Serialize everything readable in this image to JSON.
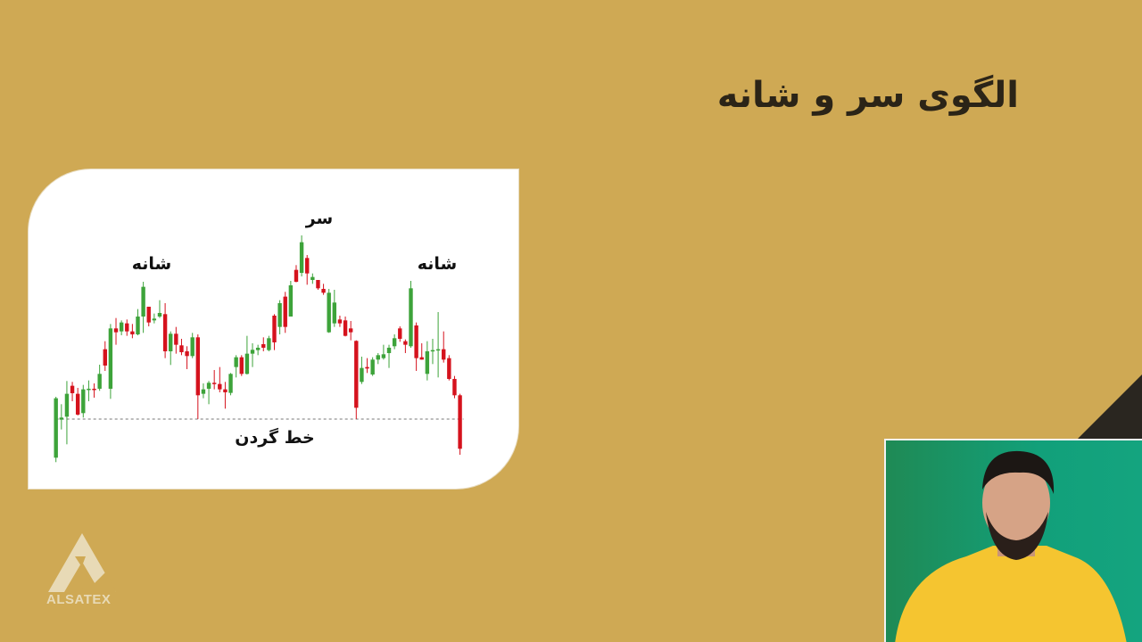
{
  "slide": {
    "title": "الگوی سر و شانه",
    "background_color": "#CFA954"
  },
  "chart_data": {
    "type": "candlestick",
    "title": "",
    "annotations": {
      "left_shoulder": "شانه",
      "head": "سر",
      "right_shoulder": "شانه",
      "neckline": "خط گردن"
    },
    "neckline_level": 16,
    "ylim": [
      0,
      100
    ],
    "colors": {
      "up": "#3DA33A",
      "down": "#D5121D",
      "neckline": "#777777"
    },
    "candles_ohlc": [
      [
        3,
        23.5,
        1.5,
        23
      ],
      [
        15.8,
        21,
        12.5,
        16.5
      ],
      [
        16.8,
        28.8,
        7.5,
        24.5
      ],
      [
        27.2,
        28.5,
        22,
        24.7
      ],
      [
        24.5,
        26.5,
        17.2,
        17.5
      ],
      [
        18,
        27.5,
        16.5,
        26
      ],
      [
        25.8,
        29,
        22,
        26.2
      ],
      [
        26.2,
        28,
        23.2,
        25.8
      ],
      [
        26.2,
        34.3,
        25.5,
        31.2
      ],
      [
        39.5,
        42.2,
        32.2,
        34
      ],
      [
        26.2,
        48,
        22.8,
        46.5
      ],
      [
        46.5,
        50,
        41,
        45.2
      ],
      [
        45.5,
        49.2,
        44.2,
        48.5
      ],
      [
        48.2,
        49.5,
        44,
        45.5
      ],
      [
        45.5,
        48,
        43.2,
        44.5
      ],
      [
        44.5,
        53,
        44.2,
        50.5
      ],
      [
        50.5,
        62.2,
        45,
        60.5
      ],
      [
        53.8,
        53.8,
        47.2,
        48.5
      ],
      [
        49.2,
        51.5,
        48.2,
        49.8
      ],
      [
        50.5,
        56,
        50,
        51.7
      ],
      [
        51.3,
        55,
        36.5,
        38.8
      ],
      [
        38.8,
        45.5,
        34.2,
        44.7
      ],
      [
        44.7,
        47,
        38,
        41
      ],
      [
        40.8,
        43,
        37.5,
        38.5
      ],
      [
        38.8,
        40.5,
        32.8,
        37.2
      ],
      [
        37.2,
        45,
        36.5,
        43.5
      ],
      [
        43.5,
        44.5,
        16,
        24
      ],
      [
        24.5,
        28,
        23,
        26
      ],
      [
        26.2,
        28.8,
        21,
        28.2
      ],
      [
        28.2,
        32.5,
        26,
        27.8
      ],
      [
        27.8,
        33.5,
        25,
        26
      ],
      [
        26,
        28.5,
        19.5,
        25
      ],
      [
        24.8,
        31.5,
        24,
        31.2
      ],
      [
        33.5,
        37.5,
        30,
        36.8
      ],
      [
        36.8,
        37.5,
        30.5,
        31.2
      ],
      [
        31.2,
        44,
        31,
        38
      ],
      [
        38,
        41.5,
        33.5,
        39.3
      ],
      [
        39.2,
        41,
        37.5,
        40
      ],
      [
        41.2,
        43.5,
        38.8,
        40
      ],
      [
        39.2,
        44,
        38.8,
        43.2
      ],
      [
        50.8,
        51.3,
        39.2,
        41.8
      ],
      [
        47,
        56,
        44.5,
        55
      ],
      [
        57.2,
        58.8,
        45,
        47
      ],
      [
        50.5,
        62.5,
        50.5,
        61
      ],
      [
        66.2,
        67.8,
        62,
        62.2
      ],
      [
        65.2,
        77.8,
        64,
        75.5
      ],
      [
        70.2,
        71.2,
        61.2,
        65
      ],
      [
        62.8,
        65,
        61.5,
        63.8
      ],
      [
        62.8,
        62.8,
        59.5,
        60
      ],
      [
        59.8,
        61.5,
        57.8,
        58.5
      ],
      [
        45.2,
        59.8,
        45,
        58.5
      ],
      [
        48.2,
        59.5,
        47,
        55.2
      ],
      [
        49.5,
        50.8,
        47,
        48.2
      ],
      [
        49.2,
        50.5,
        43.8,
        44
      ],
      [
        46.5,
        49,
        42.5,
        45.2
      ],
      [
        42.3,
        42.5,
        16,
        19.8
      ],
      [
        28.5,
        37,
        27.8,
        33.2
      ],
      [
        33.5,
        36.5,
        31.5,
        33
      ],
      [
        31,
        36.8,
        30.5,
        36
      ],
      [
        36,
        38.2,
        34.5,
        37.5
      ],
      [
        36.5,
        41,
        36,
        37.8
      ],
      [
        38.2,
        41,
        33.2,
        40
      ],
      [
        40.5,
        44.5,
        39.5,
        43.2
      ],
      [
        46.5,
        47.2,
        42,
        43
      ],
      [
        42.2,
        42.8,
        38.2,
        41
      ],
      [
        40.5,
        62.5,
        40,
        60
      ],
      [
        47.5,
        48.5,
        32.2,
        36.5
      ],
      [
        36.8,
        41.5,
        36,
        36
      ],
      [
        31.2,
        42.2,
        29,
        38.8
      ],
      [
        38.8,
        43,
        34.5,
        39.2
      ],
      [
        39.2,
        52,
        30,
        39.5
      ],
      [
        39.5,
        45.5,
        35,
        36
      ],
      [
        36.5,
        37.5,
        29,
        29.5
      ],
      [
        29.5,
        30.5,
        23,
        24
      ],
      [
        24,
        24.5,
        4,
        6
      ]
    ]
  },
  "logo": {
    "text": "ALSATEX",
    "color": "#E8DAB6"
  },
  "webcam": {
    "background_color": "#14A07A",
    "shirt_color": "#F5C530"
  }
}
